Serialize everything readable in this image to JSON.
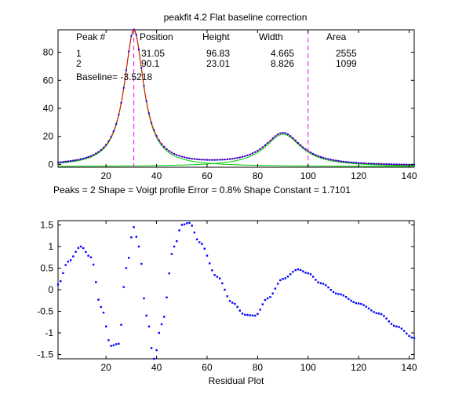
{
  "chart_data": [
    {
      "type": "line",
      "title": "peakfit 4.2   Flat baseline correction",
      "xlim": [
        1,
        142
      ],
      "ylim": [
        -2,
        96
      ],
      "xticks": [
        20,
        40,
        60,
        80,
        100,
        120,
        140
      ],
      "yticks": [
        0,
        20,
        40,
        60,
        80
      ],
      "table": {
        "headers": [
          "Peak #",
          "Position",
          "Height",
          "Width",
          "Area"
        ],
        "rows": [
          [
            "1",
            "31.05",
            "96.83",
            "4.665",
            "2555"
          ],
          [
            "2",
            "90.1",
            "23.01",
            "8.826",
            "1099"
          ]
        ],
        "baseline": "Baseline= -3.5218"
      },
      "footer": "Peaks = 2     Shape = Voigt profile     Error = 0.8%     Shape Constant = 1.7101",
      "peaks": [
        {
          "position": 31.05,
          "height": 96.83,
          "width": 4.665
        },
        {
          "position": 90.1,
          "height": 23.01,
          "width": 8.826
        }
      ],
      "markers": [
        31,
        100
      ],
      "colors": {
        "data": "#0000ff",
        "fit": "#ff0000",
        "components": "#00cc00",
        "markers": "#ff00ff"
      }
    },
    {
      "type": "scatter",
      "xlabel": "Residual Plot",
      "xlim": [
        1,
        142
      ],
      "ylim": [
        -1.6,
        1.6
      ],
      "xticks": [
        20,
        40,
        60,
        80,
        100,
        120,
        140
      ],
      "yticks": [
        -1.5,
        -1,
        -0.5,
        0,
        0.5,
        1,
        1.5
      ],
      "ytick_labels": [
        "-1.5",
        "-1",
        "-0.5",
        "0",
        "0.5",
        "1",
        "1.5"
      ],
      "knots": [
        [
          1,
          0.12
        ],
        [
          5,
          0.65
        ],
        [
          10,
          1.0
        ],
        [
          14,
          0.75
        ],
        [
          18,
          -0.4
        ],
        [
          22,
          -1.3
        ],
        [
          25,
          -1.25
        ],
        [
          28,
          0.5
        ],
        [
          31,
          1.45
        ],
        [
          33,
          1.0
        ],
        [
          36,
          -0.6
        ],
        [
          39,
          -1.6
        ],
        [
          42,
          -0.8
        ],
        [
          47,
          1.0
        ],
        [
          50,
          1.5
        ],
        [
          53,
          1.55
        ],
        [
          57,
          1.1
        ],
        [
          64,
          0.3
        ],
        [
          70,
          -0.3
        ],
        [
          75,
          -0.58
        ],
        [
          79,
          -0.6
        ],
        [
          84,
          -0.2
        ],
        [
          90,
          0.25
        ],
        [
          96,
          0.47
        ],
        [
          100,
          0.38
        ],
        [
          105,
          0.15
        ],
        [
          112,
          -0.1
        ],
        [
          120,
          -0.32
        ],
        [
          128,
          -0.55
        ],
        [
          135,
          -0.85
        ],
        [
          142,
          -1.12
        ]
      ],
      "color": "#0000ff"
    }
  ]
}
